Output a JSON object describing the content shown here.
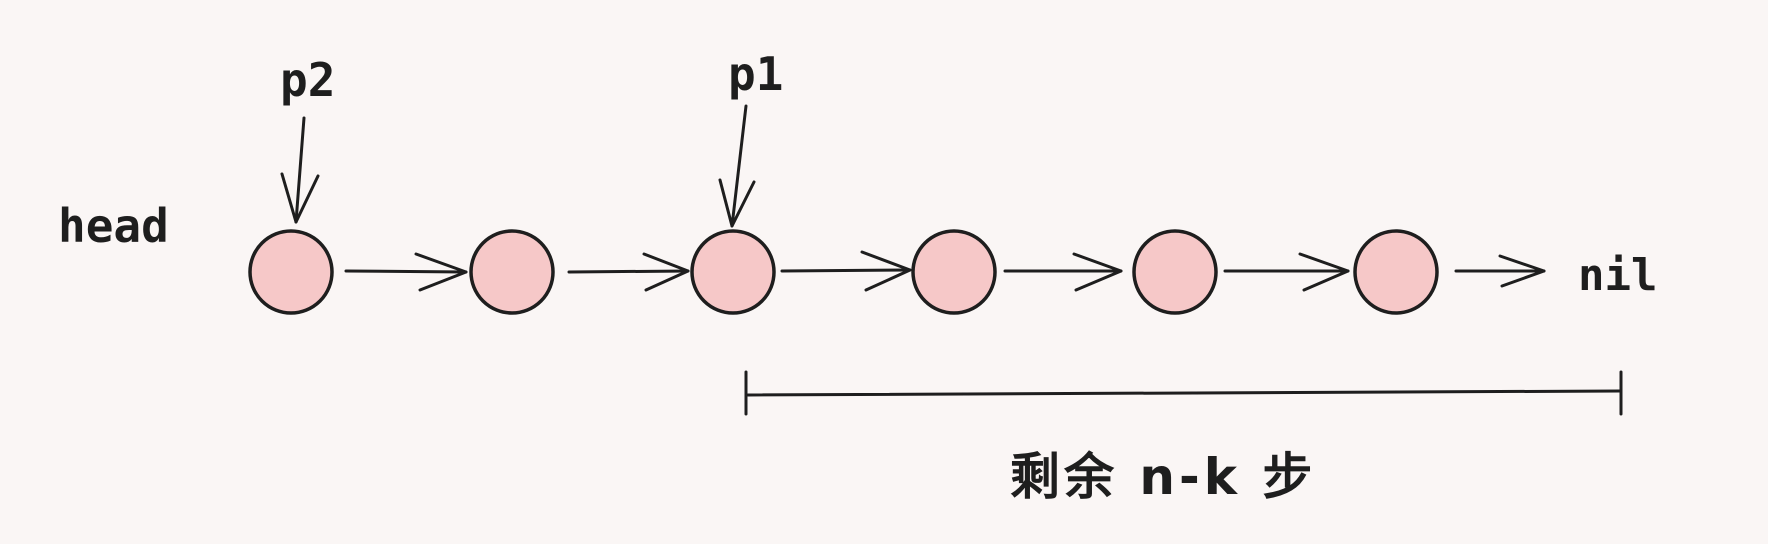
{
  "labels": {
    "head": "head",
    "p2": "p2",
    "p1": "p1",
    "nil": "nil",
    "span": "剩余 n-k 步"
  },
  "colors": {
    "background": "#faf6f5",
    "node_fill": "#f6c8c8",
    "stroke": "#1e1e1e"
  },
  "nodes": [
    {
      "id": "node-1",
      "pointer": "p2"
    },
    {
      "id": "node-2"
    },
    {
      "id": "node-3",
      "pointer": "p1"
    },
    {
      "id": "node-4"
    },
    {
      "id": "node-5"
    },
    {
      "id": "node-6"
    }
  ],
  "edges": [
    {
      "from": "node-1",
      "to": "node-2"
    },
    {
      "from": "node-2",
      "to": "node-3"
    },
    {
      "from": "node-3",
      "to": "node-4"
    },
    {
      "from": "node-4",
      "to": "node-5"
    },
    {
      "from": "node-5",
      "to": "node-6"
    },
    {
      "from": "node-6",
      "to": "nil"
    }
  ],
  "span": {
    "from": "node-3",
    "to": "nil"
  }
}
